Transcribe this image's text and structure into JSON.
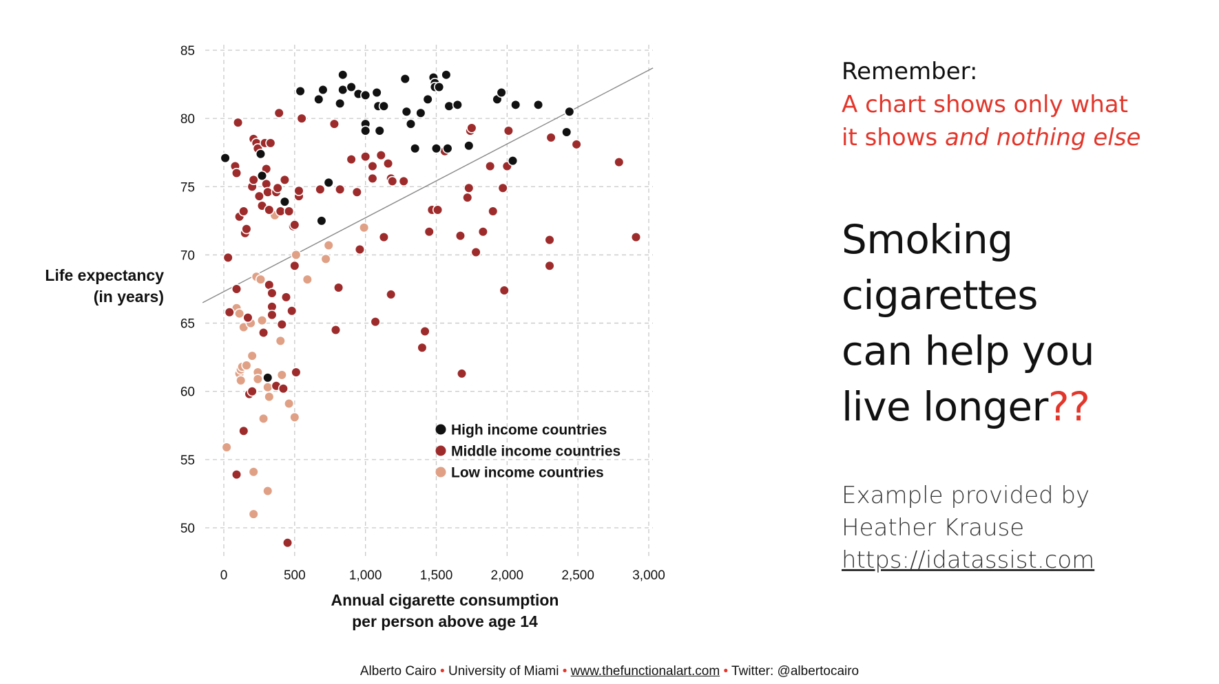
{
  "chart_data": {
    "type": "scatter",
    "xlabel": [
      "Annual cigarette consumption",
      "per person above age 14"
    ],
    "ylabel": [
      "Life expectancy",
      "(in years)"
    ],
    "xlim": [
      0,
      3000
    ],
    "ylim": [
      48,
      85
    ],
    "x_ticks": [
      0,
      500,
      1000,
      1500,
      2000,
      2500,
      3000
    ],
    "x_tick_labels": [
      "0",
      "500",
      "1,000",
      "1,500",
      "2,000",
      "2,500",
      "3,000"
    ],
    "y_ticks": [
      50,
      55,
      60,
      65,
      70,
      75,
      80,
      85
    ],
    "y_tick_labels": [
      "50",
      "55",
      "60",
      "65",
      "70",
      "75",
      "80",
      "85"
    ],
    "grid": true,
    "legend_position": "bottom-right",
    "trend_line": [
      [
        -150,
        66.5
      ],
      [
        3030,
        83.7
      ]
    ],
    "series": [
      {
        "name": "High income countries",
        "color": "#111111",
        "points": [
          [
            10,
            77.1
          ],
          [
            260,
            77.4
          ],
          [
            270,
            75.8
          ],
          [
            310,
            61.0
          ],
          [
            430,
            73.9
          ],
          [
            540,
            82.0
          ],
          [
            670,
            81.4
          ],
          [
            690,
            72.5
          ],
          [
            700,
            82.1
          ],
          [
            740,
            75.3
          ],
          [
            820,
            81.1
          ],
          [
            840,
            83.2
          ],
          [
            840,
            82.1
          ],
          [
            900,
            82.3
          ],
          [
            950,
            81.8
          ],
          [
            1000,
            81.7
          ],
          [
            1000,
            79.6
          ],
          [
            1000,
            79.1
          ],
          [
            1080,
            81.9
          ],
          [
            1090,
            80.9
          ],
          [
            1100,
            79.1
          ],
          [
            1130,
            80.9
          ],
          [
            1280,
            82.9
          ],
          [
            1290,
            80.5
          ],
          [
            1320,
            79.6
          ],
          [
            1350,
            77.8
          ],
          [
            1390,
            80.4
          ],
          [
            1440,
            81.4
          ],
          [
            1480,
            83.0
          ],
          [
            1490,
            82.6
          ],
          [
            1490,
            82.3
          ],
          [
            1500,
            77.8
          ],
          [
            1520,
            82.3
          ],
          [
            1570,
            83.2
          ],
          [
            1580,
            77.8
          ],
          [
            1590,
            80.9
          ],
          [
            1650,
            81.0
          ],
          [
            1730,
            78.0
          ],
          [
            1930,
            81.4
          ],
          [
            1960,
            81.9
          ],
          [
            2040,
            76.9
          ],
          [
            2060,
            81.0
          ],
          [
            2220,
            81.0
          ],
          [
            2420,
            79.0
          ],
          [
            2440,
            80.5
          ]
        ]
      },
      {
        "name": "Middle income countries",
        "color": "#9e2b2b",
        "points": [
          [
            30,
            69.8
          ],
          [
            40,
            65.8
          ],
          [
            80,
            76.5
          ],
          [
            90,
            67.5
          ],
          [
            90,
            76.0
          ],
          [
            90,
            53.9
          ],
          [
            100,
            79.7
          ],
          [
            110,
            72.8
          ],
          [
            140,
            73.2
          ],
          [
            140,
            57.1
          ],
          [
            150,
            71.6
          ],
          [
            160,
            71.9
          ],
          [
            170,
            65.4
          ],
          [
            180,
            59.8
          ],
          [
            200,
            60.0
          ],
          [
            200,
            75.0
          ],
          [
            210,
            75.5
          ],
          [
            210,
            78.5
          ],
          [
            230,
            78.2
          ],
          [
            240,
            77.8
          ],
          [
            250,
            74.3
          ],
          [
            270,
            73.6
          ],
          [
            280,
            64.3
          ],
          [
            290,
            78.2
          ],
          [
            300,
            76.3
          ],
          [
            300,
            75.2
          ],
          [
            310,
            74.6
          ],
          [
            320,
            67.8
          ],
          [
            320,
            73.3
          ],
          [
            330,
            78.2
          ],
          [
            340,
            67.2
          ],
          [
            340,
            66.2
          ],
          [
            340,
            65.6
          ],
          [
            370,
            74.6
          ],
          [
            370,
            60.4
          ],
          [
            380,
            74.9
          ],
          [
            390,
            80.4
          ],
          [
            400,
            73.2
          ],
          [
            410,
            64.9
          ],
          [
            420,
            60.2
          ],
          [
            430,
            75.5
          ],
          [
            440,
            66.9
          ],
          [
            450,
            48.9
          ],
          [
            460,
            73.2
          ],
          [
            480,
            65.9
          ],
          [
            490,
            72.1
          ],
          [
            500,
            72.2
          ],
          [
            500,
            69.2
          ],
          [
            510,
            61.4
          ],
          [
            530,
            74.3
          ],
          [
            530,
            74.7
          ],
          [
            550,
            80.0
          ],
          [
            680,
            74.8
          ],
          [
            780,
            79.6
          ],
          [
            790,
            64.5
          ],
          [
            810,
            67.6
          ],
          [
            820,
            74.8
          ],
          [
            900,
            77.0
          ],
          [
            940,
            74.6
          ],
          [
            960,
            70.4
          ],
          [
            1000,
            77.2
          ],
          [
            1050,
            75.6
          ],
          [
            1050,
            76.5
          ],
          [
            1070,
            65.1
          ],
          [
            1110,
            77.3
          ],
          [
            1130,
            71.3
          ],
          [
            1160,
            76.7
          ],
          [
            1180,
            75.6
          ],
          [
            1190,
            75.4
          ],
          [
            1180,
            67.1
          ],
          [
            1270,
            75.4
          ],
          [
            1400,
            63.2
          ],
          [
            1420,
            64.4
          ],
          [
            1450,
            71.7
          ],
          [
            1470,
            73.3
          ],
          [
            1510,
            73.3
          ],
          [
            1560,
            77.6
          ],
          [
            1670,
            71.4
          ],
          [
            1680,
            61.3
          ],
          [
            1720,
            74.2
          ],
          [
            1730,
            74.9
          ],
          [
            1740,
            79.1
          ],
          [
            1750,
            79.3
          ],
          [
            1780,
            70.2
          ],
          [
            1830,
            71.7
          ],
          [
            1880,
            76.5
          ],
          [
            1900,
            73.2
          ],
          [
            1970,
            74.9
          ],
          [
            1980,
            67.4
          ],
          [
            2000,
            76.5
          ],
          [
            2010,
            79.1
          ],
          [
            2300,
            69.2
          ],
          [
            2300,
            71.1
          ],
          [
            2310,
            78.6
          ],
          [
            2490,
            78.1
          ],
          [
            2790,
            76.8
          ],
          [
            2910,
            71.3
          ]
        ]
      },
      {
        "name": "Low income countries",
        "color": "#e0a085",
        "points": [
          [
            20,
            55.9
          ],
          [
            90,
            66.1
          ],
          [
            110,
            65.7
          ],
          [
            110,
            61.3
          ],
          [
            120,
            61.6
          ],
          [
            120,
            60.8
          ],
          [
            130,
            61.8
          ],
          [
            140,
            64.7
          ],
          [
            160,
            61.9
          ],
          [
            190,
            65.0
          ],
          [
            200,
            62.6
          ],
          [
            210,
            54.1
          ],
          [
            210,
            51.0
          ],
          [
            230,
            68.4
          ],
          [
            240,
            61.4
          ],
          [
            240,
            60.9
          ],
          [
            260,
            68.2
          ],
          [
            270,
            65.2
          ],
          [
            280,
            58.0
          ],
          [
            310,
            52.7
          ],
          [
            310,
            60.3
          ],
          [
            320,
            59.6
          ],
          [
            360,
            72.9
          ],
          [
            400,
            63.7
          ],
          [
            410,
            61.2
          ],
          [
            460,
            59.1
          ],
          [
            500,
            58.1
          ],
          [
            510,
            70.0
          ],
          [
            590,
            68.2
          ],
          [
            720,
            69.7
          ],
          [
            740,
            70.7
          ],
          [
            990,
            72.0
          ]
        ]
      }
    ]
  },
  "side_text": {
    "remember_label": "Remember:",
    "remember_line1": "A chart shows only what",
    "remember_line2_start": "it shows ",
    "remember_line2_em": "and nothing else",
    "claim_line1": "Smoking",
    "claim_line2": "cigarettes",
    "claim_line3": "can help you",
    "claim_line4": "live longer",
    "claim_marks": "??",
    "credit_line1": "Example provided by",
    "credit_line2": "Heather Krause",
    "credit_link": "https://idatassist.com"
  },
  "footer": {
    "author": "Alberto Cairo",
    "sep": "•",
    "university": "University of Miami",
    "website": "www.thefunctionalart.com",
    "twitter": "Twitter: @albertocairo"
  },
  "colors": {
    "accent_red": "#e2362b",
    "grid": "#c8c8c8",
    "trend_line": "#888888"
  }
}
